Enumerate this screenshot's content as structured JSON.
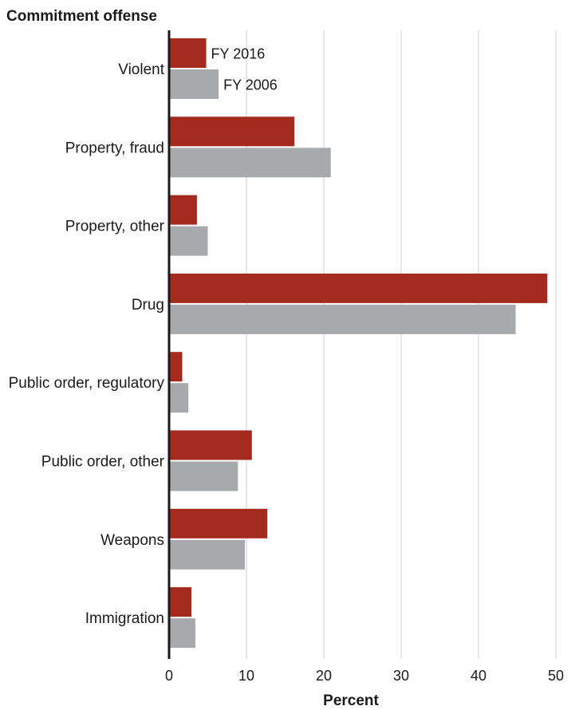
{
  "chart_data": {
    "type": "bar",
    "orientation": "horizontal",
    "title": "",
    "ylabel": "Commitment offense",
    "xlabel": "Percent",
    "xlim": [
      0,
      50
    ],
    "xticks": [
      0,
      10,
      20,
      30,
      40,
      50
    ],
    "grid": true,
    "categories": [
      "Violent",
      "Property, fraud",
      "Property, other",
      "Drug",
      "Public order, regulatory",
      "Public order, other",
      "Weapons",
      "Immigration"
    ],
    "series": [
      {
        "name": "FY 2016",
        "color": "#a52a1e",
        "values": [
          4.8,
          16.2,
          3.6,
          48.9,
          1.7,
          10.7,
          12.7,
          2.9
        ]
      },
      {
        "name": "FY 2006",
        "color": "#a7a9ac",
        "values": [
          6.4,
          20.9,
          5.0,
          44.8,
          2.5,
          8.9,
          9.8,
          3.4
        ]
      }
    ],
    "legend_placement": "inline, beside Violent bars"
  }
}
